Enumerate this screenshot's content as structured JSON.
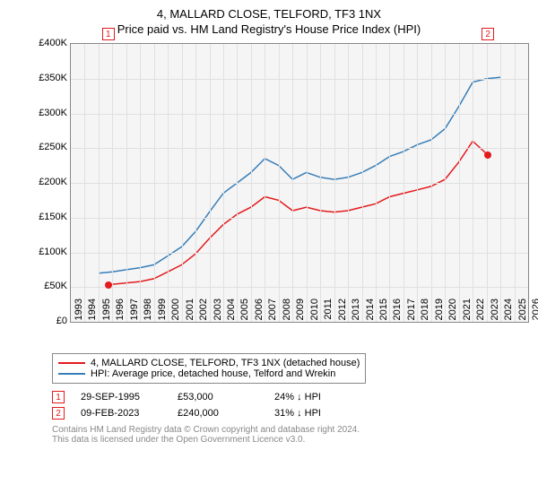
{
  "title": "4, MALLARD CLOSE, TELFORD, TF3 1NX",
  "subtitle": "Price paid vs. HM Land Registry's House Price Index (HPI)",
  "chart": {
    "type": "line",
    "background_color": "#f5f5f5",
    "grid_color": "#e0e0e0",
    "border_color": "#888888",
    "ylim": [
      0,
      400000
    ],
    "ytick_step": 50000,
    "ylabels": [
      "£0",
      "£50K",
      "£100K",
      "£150K",
      "£200K",
      "£250K",
      "£300K",
      "£350K",
      "£400K"
    ],
    "xlim": [
      1993,
      2026
    ],
    "xtick_step": 1,
    "xlabels": [
      "1993",
      "1994",
      "1995",
      "1996",
      "1997",
      "1998",
      "1999",
      "2000",
      "2001",
      "2002",
      "2003",
      "2004",
      "2005",
      "2006",
      "2007",
      "2008",
      "2009",
      "2010",
      "2011",
      "2012",
      "2013",
      "2014",
      "2015",
      "2016",
      "2017",
      "2018",
      "2019",
      "2020",
      "2021",
      "2022",
      "2023",
      "2024",
      "2025",
      "2026"
    ],
    "label_fontsize": 11,
    "series": [
      {
        "name": "property",
        "label": "4, MALLARD CLOSE, TELFORD, TF3 1NX (detached house)",
        "color": "#e41a1c",
        "line_width": 1.5,
        "data": [
          [
            1995.7,
            53000
          ],
          [
            1996,
            54000
          ],
          [
            1997,
            56000
          ],
          [
            1998,
            58000
          ],
          [
            1999,
            62000
          ],
          [
            2000,
            72000
          ],
          [
            2001,
            82000
          ],
          [
            2002,
            98000
          ],
          [
            2003,
            120000
          ],
          [
            2004,
            140000
          ],
          [
            2005,
            155000
          ],
          [
            2006,
            165000
          ],
          [
            2007,
            180000
          ],
          [
            2008,
            175000
          ],
          [
            2009,
            160000
          ],
          [
            2010,
            165000
          ],
          [
            2011,
            160000
          ],
          [
            2012,
            158000
          ],
          [
            2013,
            160000
          ],
          [
            2014,
            165000
          ],
          [
            2015,
            170000
          ],
          [
            2016,
            180000
          ],
          [
            2017,
            185000
          ],
          [
            2018,
            190000
          ],
          [
            2019,
            195000
          ],
          [
            2020,
            205000
          ],
          [
            2021,
            230000
          ],
          [
            2022,
            260000
          ],
          [
            2023.1,
            240000
          ]
        ]
      },
      {
        "name": "hpi",
        "label": "HPI: Average price, detached house, Telford and Wrekin",
        "color": "#377eb8",
        "line_width": 1.5,
        "data": [
          [
            1995,
            70000
          ],
          [
            1996,
            72000
          ],
          [
            1997,
            75000
          ],
          [
            1998,
            78000
          ],
          [
            1999,
            82000
          ],
          [
            2000,
            95000
          ],
          [
            2001,
            108000
          ],
          [
            2002,
            130000
          ],
          [
            2003,
            158000
          ],
          [
            2004,
            185000
          ],
          [
            2005,
            200000
          ],
          [
            2006,
            215000
          ],
          [
            2007,
            235000
          ],
          [
            2008,
            225000
          ],
          [
            2009,
            205000
          ],
          [
            2010,
            215000
          ],
          [
            2011,
            208000
          ],
          [
            2012,
            205000
          ],
          [
            2013,
            208000
          ],
          [
            2014,
            215000
          ],
          [
            2015,
            225000
          ],
          [
            2016,
            238000
          ],
          [
            2017,
            245000
          ],
          [
            2018,
            255000
          ],
          [
            2019,
            262000
          ],
          [
            2020,
            278000
          ],
          [
            2021,
            310000
          ],
          [
            2022,
            345000
          ],
          [
            2023,
            350000
          ],
          [
            2024,
            352000
          ]
        ]
      }
    ],
    "markers": [
      {
        "n": "1",
        "x": 1995.7,
        "y": 53000,
        "color": "#e41a1c"
      },
      {
        "n": "2",
        "x": 2023.1,
        "y": 240000,
        "color": "#e41a1c"
      }
    ]
  },
  "legend": {
    "items": [
      {
        "color": "#e41a1c",
        "label": "4, MALLARD CLOSE, TELFORD, TF3 1NX (detached house)"
      },
      {
        "color": "#377eb8",
        "label": "HPI: Average price, detached house, Telford and Wrekin"
      }
    ]
  },
  "transactions": [
    {
      "n": "1",
      "color": "#e41a1c",
      "date": "29-SEP-1995",
      "price": "£53,000",
      "diff": "24% ↓ HPI"
    },
    {
      "n": "2",
      "color": "#e41a1c",
      "date": "09-FEB-2023",
      "price": "£240,000",
      "diff": "31% ↓ HPI"
    }
  ],
  "footer": {
    "line1": "Contains HM Land Registry data © Crown copyright and database right 2024.",
    "line2": "This data is licensed under the Open Government Licence v3.0."
  }
}
